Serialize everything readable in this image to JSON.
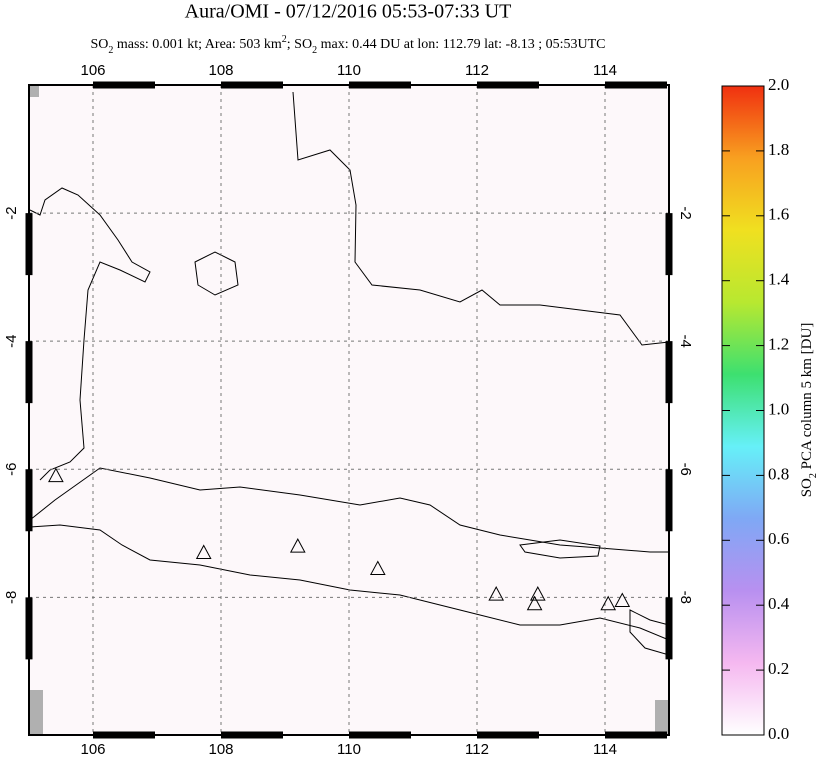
{
  "chart_data": {
    "type": "map",
    "title": "Aura/OMI - 07/12/2016 05:53-07:33 UT",
    "subtitle": [
      "SO",
      "2",
      " mass: 0.001 kt; Area: 503 km",
      "2",
      "; SO",
      "2",
      " max: 0.44 DU at lon: 112.79 lat: -8.13 ; 05:53UTC"
    ],
    "xlim": [
      105,
      115
    ],
    "xticks": [
      106,
      108,
      110,
      112,
      114
    ],
    "ylim": [
      -10.15,
      0
    ],
    "yticks": [
      -2,
      -4,
      -6,
      -8
    ],
    "grid": true,
    "volcanoes": {
      "lon": [
        105.42,
        107.73,
        109.2,
        110.45,
        112.3,
        112.95,
        112.9,
        114.05,
        114.27
      ],
      "lat": [
        -6.1,
        -7.3,
        -7.2,
        -7.55,
        -7.95,
        -7.95,
        -8.1,
        -8.1,
        -8.05
      ]
    },
    "colorbar": {
      "label": [
        "SO",
        "2",
        " PCA column 5 km [DU]"
      ],
      "lim": [
        0,
        2
      ],
      "ticks": [
        {
          "value": 0,
          "label": "0.0"
        },
        0.2,
        0.4,
        0.6,
        0.8,
        {
          "value": 1,
          "label": "1.0"
        },
        1.2,
        1.4,
        1.6,
        1.8,
        {
          "value": 2,
          "label": "2.0"
        }
      ],
      "colormap": [
        "#ffffff",
        "#f5b8f0",
        "#b890f0",
        "#7fa8f5",
        "#66f0f8",
        "#3de070",
        "#b8e830",
        "#f0e020",
        "#f8a020",
        "#f03010"
      ]
    }
  }
}
